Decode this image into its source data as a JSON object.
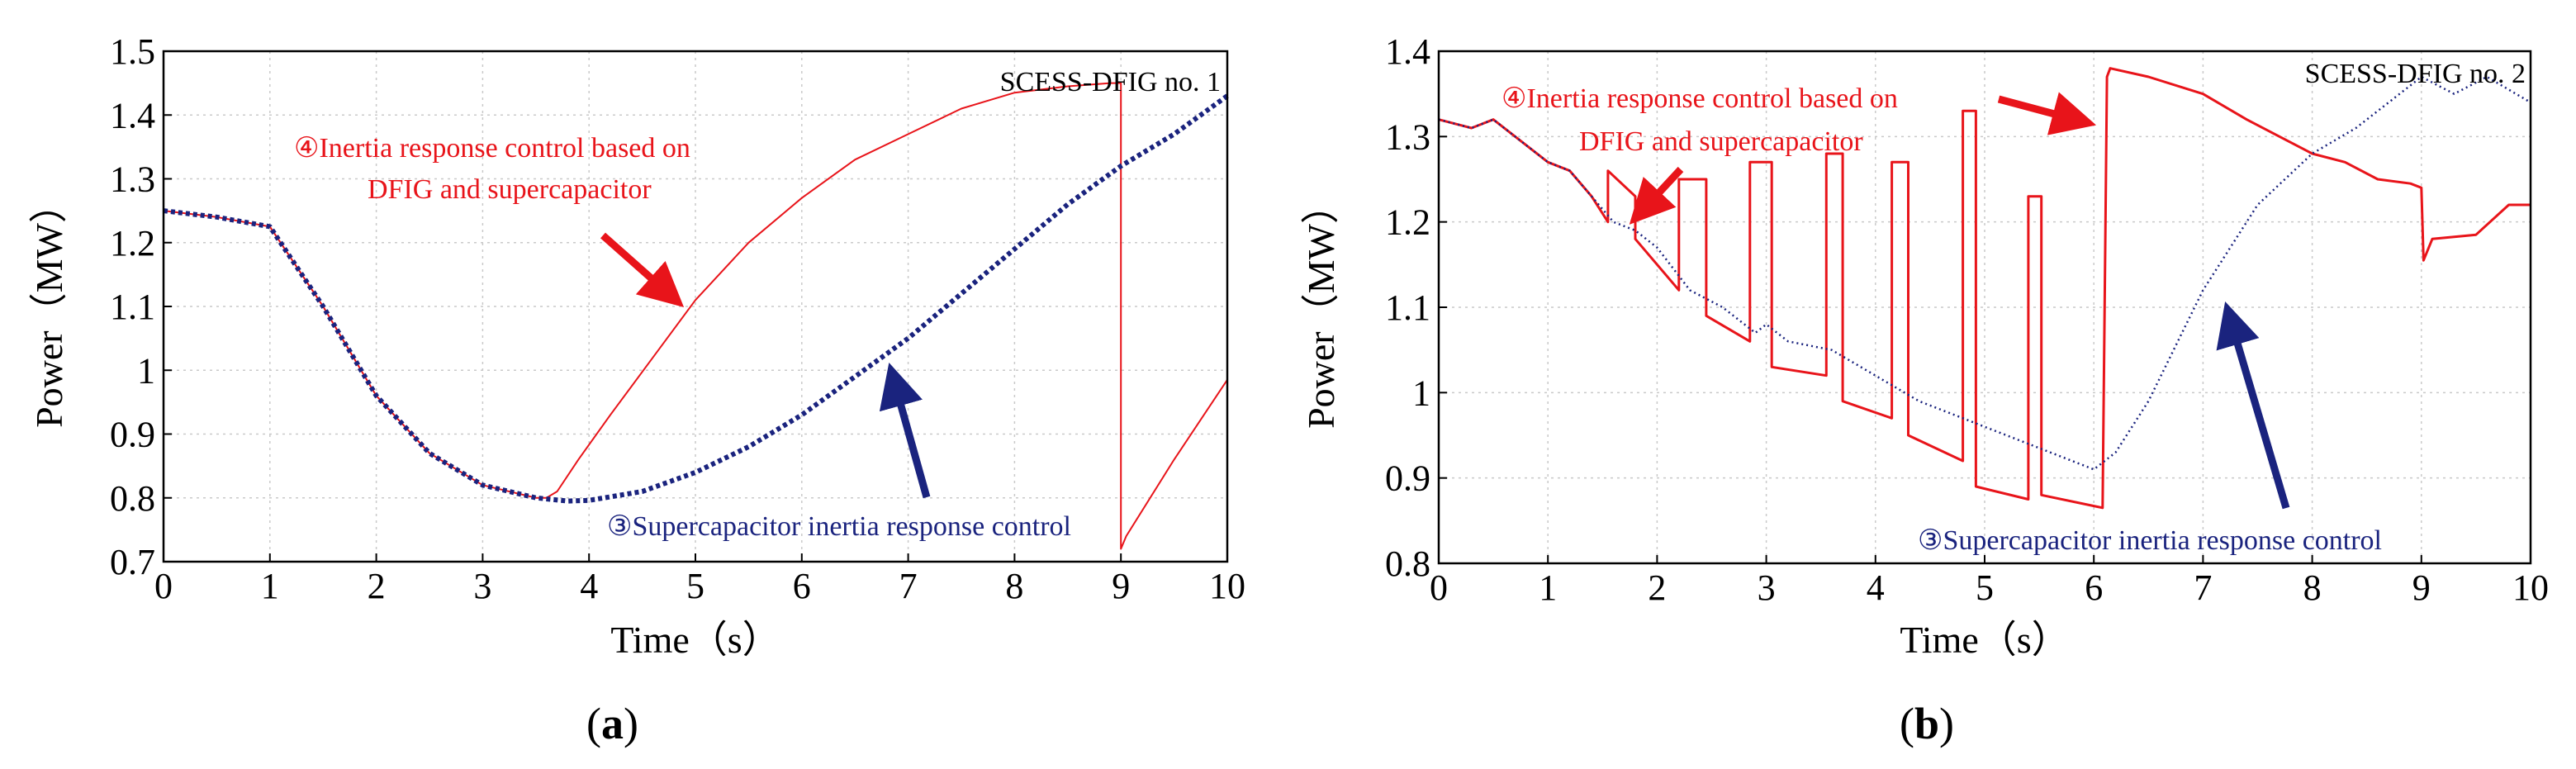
{
  "chart_data": [
    {
      "type": "line",
      "panel_label": "(a)",
      "panel_letter": "a",
      "title": "SCESS-DFIG no. 1",
      "xlabel": "Time（s）",
      "ylabel": "Power（MW）",
      "xlim": [
        0,
        10
      ],
      "ylim": [
        0.7,
        1.5
      ],
      "xticks": [
        0,
        1,
        2,
        3,
        4,
        5,
        6,
        7,
        8,
        9,
        10
      ],
      "yticks": [
        0.7,
        0.8,
        0.9,
        1,
        1.1,
        1.2,
        1.3,
        1.4,
        1.5
      ],
      "ytick_labels": [
        "0.7",
        "0.8",
        "0.9",
        "1",
        "1.1",
        "1.2",
        "1.3",
        "1.4",
        "1.5"
      ],
      "grid": true,
      "series": [
        {
          "name": "④Inertia response control based on DFIG and supercapacitor",
          "color": "#e8141a",
          "style": "solid",
          "x": [
            0,
            0.5,
            1.0,
            1.5,
            2.0,
            2.5,
            3.0,
            3.5,
            3.6,
            3.7,
            3.9,
            4.2,
            4.6,
            5.0,
            5.5,
            6.0,
            6.5,
            7.0,
            7.5,
            8.0,
            8.5,
            8.9,
            9.0,
            9.0,
            9.05,
            9.5,
            10.0
          ],
          "y": [
            1.25,
            1.24,
            1.225,
            1.1,
            0.96,
            0.87,
            0.82,
            0.8,
            0.8,
            0.81,
            0.86,
            0.93,
            1.02,
            1.11,
            1.2,
            1.27,
            1.33,
            1.37,
            1.41,
            1.435,
            1.445,
            1.45,
            1.45,
            0.72,
            0.74,
            0.86,
            0.985
          ]
        },
        {
          "name": "③Supercapacitor inertia response control",
          "color": "#1a237e",
          "style": "dotted",
          "x": [
            0,
            0.5,
            1.0,
            1.5,
            2.0,
            2.5,
            3.0,
            3.5,
            3.8,
            4.0,
            4.5,
            5.0,
            5.5,
            6.0,
            6.5,
            7.0,
            7.5,
            8.0,
            8.5,
            9.0,
            9.5,
            10.0
          ],
          "y": [
            1.25,
            1.24,
            1.225,
            1.1,
            0.96,
            0.87,
            0.82,
            0.8,
            0.795,
            0.796,
            0.81,
            0.84,
            0.88,
            0.93,
            0.99,
            1.05,
            1.12,
            1.19,
            1.26,
            1.32,
            1.37,
            1.43
          ]
        }
      ],
      "annotations": {
        "red_line1": "④Inertia response control based on",
        "red_line2": "DFIG and supercapacitor",
        "blue": "③Supercapacitor inertia response control"
      }
    },
    {
      "type": "line",
      "panel_label": "(b)",
      "panel_letter": "b",
      "title": "SCESS-DFIG no. 2",
      "xlabel": "Time（s）",
      "ylabel": "Power（MW）",
      "xlim": [
        0,
        10
      ],
      "ylim": [
        0.8,
        1.4
      ],
      "xticks": [
        0,
        1,
        2,
        3,
        4,
        5,
        6,
        7,
        8,
        9,
        10
      ],
      "yticks": [
        0.8,
        0.9,
        1,
        1.1,
        1.2,
        1.3,
        1.4
      ],
      "ytick_labels": [
        "0.8",
        "0.9",
        "1",
        "1.1",
        "1.2",
        "1.3",
        "1.4"
      ],
      "grid": true,
      "series": [
        {
          "name": "④Inertia response control based on DFIG and supercapacitor",
          "color": "#e8141a",
          "style": "solid",
          "x": [
            0,
            0.3,
            0.5,
            0.8,
            1.0,
            1.2,
            1.4,
            1.55,
            1.55,
            1.8,
            1.8,
            2.2,
            2.2,
            2.45,
            2.45,
            2.85,
            2.85,
            3.05,
            3.05,
            3.55,
            3.55,
            3.7,
            3.7,
            4.15,
            4.15,
            4.3,
            4.3,
            4.8,
            4.8,
            4.92,
            4.92,
            5.4,
            5.4,
            5.52,
            5.52,
            6.08,
            6.12,
            6.15,
            6.5,
            7.0,
            7.4,
            7.7,
            8.0,
            8.3,
            8.6,
            8.9,
            9.0,
            9.02,
            9.1,
            9.5,
            9.8,
            10.0
          ],
          "y": [
            1.32,
            1.31,
            1.32,
            1.29,
            1.27,
            1.26,
            1.23,
            1.2,
            1.26,
            1.23,
            1.18,
            1.12,
            1.25,
            1.25,
            1.09,
            1.06,
            1.27,
            1.27,
            1.03,
            1.02,
            1.28,
            1.28,
            0.99,
            0.97,
            1.27,
            1.27,
            0.95,
            0.92,
            1.33,
            1.33,
            0.89,
            0.875,
            1.23,
            1.23,
            0.88,
            0.865,
            1.37,
            1.38,
            1.37,
            1.35,
            1.32,
            1.3,
            1.28,
            1.27,
            1.25,
            1.245,
            1.24,
            1.155,
            1.18,
            1.185,
            1.22,
            1.22
          ]
        },
        {
          "name": "③Supercapacitor inertia response control",
          "color": "#1a237e",
          "style": "dotted",
          "x": [
            0,
            0.3,
            0.5,
            0.8,
            1.0,
            1.2,
            1.4,
            1.6,
            1.8,
            2.0,
            2.3,
            2.6,
            2.9,
            3.0,
            3.2,
            3.6,
            4.0,
            4.4,
            4.8,
            5.0,
            5.4,
            5.8,
            6.0,
            6.2,
            6.5,
            7.0,
            7.5,
            8.0,
            8.4,
            8.8,
            9.0,
            9.3,
            9.6,
            10.0
          ],
          "y": [
            1.32,
            1.31,
            1.32,
            1.29,
            1.27,
            1.26,
            1.23,
            1.2,
            1.19,
            1.17,
            1.12,
            1.1,
            1.07,
            1.08,
            1.06,
            1.05,
            1.02,
            0.99,
            0.97,
            0.96,
            0.94,
            0.92,
            0.91,
            0.93,
            0.99,
            1.12,
            1.22,
            1.28,
            1.31,
            1.35,
            1.37,
            1.35,
            1.37,
            1.34
          ]
        }
      ],
      "annotations": {
        "red_line1": "④Inertia response control based on",
        "red_line2": "DFIG and supercapacitor",
        "blue": "③Supercapacitor inertia response control"
      }
    }
  ]
}
